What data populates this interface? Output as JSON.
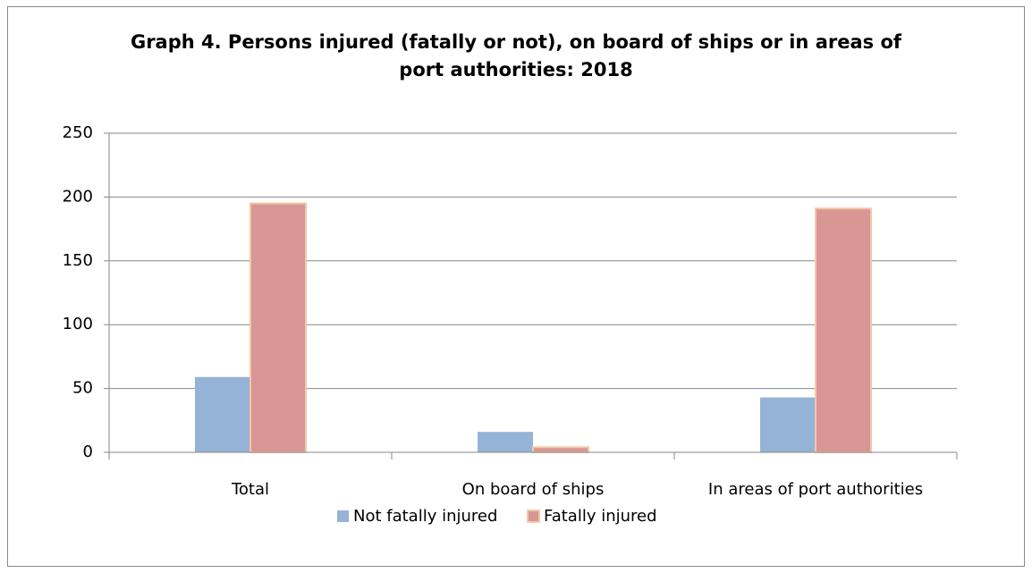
{
  "chart_data": {
    "type": "bar",
    "title": "Graph 4. Persons injured (fatally or not), on board of ships or in areas of port authorities: 2018",
    "categories": [
      "Total",
      "On board of ships",
      "In areas of port authorities"
    ],
    "series": [
      {
        "name": "Not fatally injured",
        "color": "#95b3d7",
        "values": [
          59,
          16,
          43
        ]
      },
      {
        "name": "Fatally injured",
        "color": "#d99694",
        "values": [
          195,
          4,
          191
        ]
      }
    ],
    "ylim": [
      0,
      250
    ],
    "yticks": [
      0,
      50,
      100,
      150,
      200,
      250
    ],
    "grid": true,
    "legend": "bottom"
  }
}
